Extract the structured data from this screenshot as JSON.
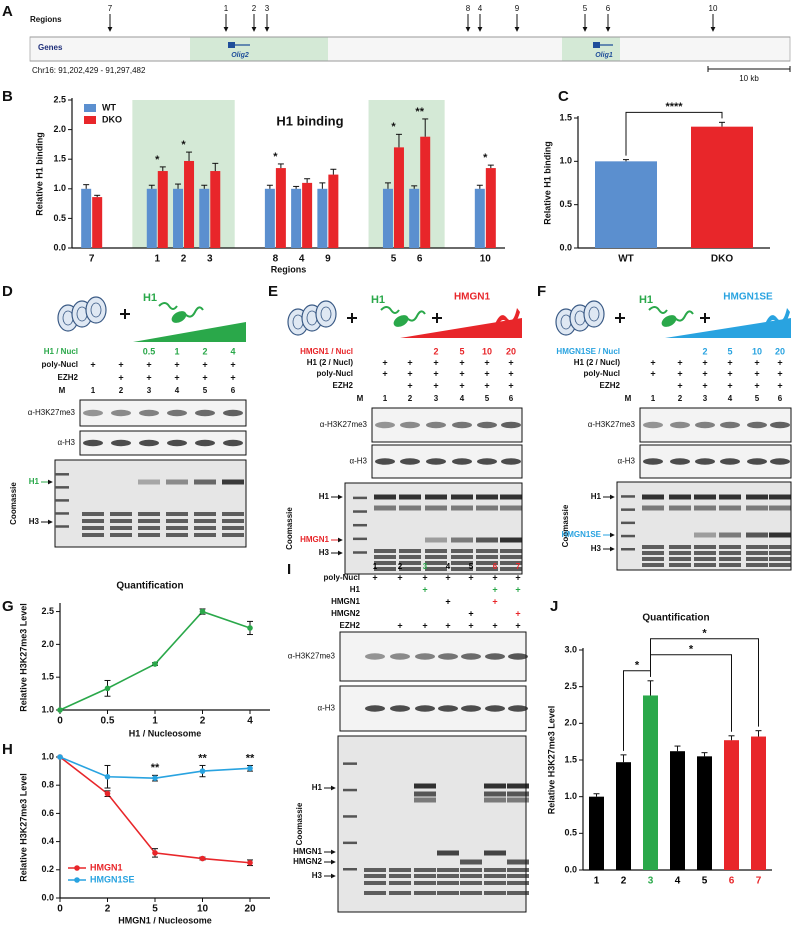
{
  "panel_labels": [
    "A",
    "B",
    "C",
    "D",
    "E",
    "F",
    "G",
    "H",
    "I",
    "J"
  ],
  "panel_a": {
    "regions_label": "Regions",
    "regions": [
      "7",
      "1",
      "2",
      "3",
      "8",
      "4",
      "9",
      "5",
      "6",
      "10"
    ],
    "genes_label": "Genes",
    "genes": [
      "Olig2",
      "Olig1"
    ],
    "coordinates": "Chr16: 91,202,429 - 91,297,482",
    "scale": "10 kb",
    "highlight_color": "#d4e9d6"
  },
  "chart_data": [
    {
      "type": "bar",
      "title": "H1 binding",
      "y_label": "Relative H1 binding",
      "x_label": "Regions",
      "categories": [
        "7",
        "1",
        "2",
        "3",
        "8",
        "4",
        "9",
        "5",
        "6",
        "10"
      ],
      "series": [
        {
          "name": "WT",
          "color": "#5b8fcf",
          "values": [
            1.0,
            1.0,
            1.0,
            1.0,
            1.0,
            1.0,
            1.0,
            1.0,
            1.0,
            1.0
          ],
          "errors": [
            0.07,
            0.06,
            0.08,
            0.06,
            0.06,
            0.04,
            0.1,
            0.1,
            0.05,
            0.06
          ]
        },
        {
          "name": "DKO",
          "color": "#e8262a",
          "values": [
            0.86,
            1.3,
            1.47,
            1.3,
            1.35,
            1.1,
            1.24,
            1.7,
            1.88,
            1.35
          ],
          "errors": [
            0.03,
            0.07,
            0.15,
            0.13,
            0.07,
            0.07,
            0.09,
            0.22,
            0.3,
            0.05
          ]
        }
      ],
      "ylim": [
        0,
        2.5
      ],
      "yticks": [
        {
          "value": 0,
          "label": "0.0"
        },
        0.5,
        {
          "value": 1,
          "label": "1.0"
        },
        1.5,
        {
          "value": 2,
          "label": "2.0"
        },
        2.5
      ],
      "highlights": [
        [
          "1",
          "3"
        ],
        [
          "5",
          "6"
        ]
      ],
      "highlight_color": "#d4e9d6",
      "legend": "upper left",
      "annotations": [
        {
          "x": "1",
          "text": "*"
        },
        {
          "x": "2",
          "text": "*"
        },
        {
          "x": "8",
          "text": "*"
        },
        {
          "x": "5",
          "text": "*"
        },
        {
          "x": "6",
          "text": "**"
        },
        {
          "x": "10",
          "text": "*"
        }
      ]
    },
    {
      "type": "bar",
      "y_label": "Relative H1 binding",
      "categories": [
        "WT",
        "DKO"
      ],
      "values": [
        1.0,
        1.4
      ],
      "errors": [
        0.02,
        0.05
      ],
      "colors": [
        "#5b8fcf",
        "#e8262a"
      ],
      "ylim": [
        0,
        1.5
      ],
      "yticks": [
        {
          "value": 0,
          "label": "0.0"
        },
        0.5,
        {
          "value": 1,
          "label": "1.0"
        },
        1.5
      ],
      "brackets": [
        {
          "from": "WT",
          "to": "DKO",
          "text": "****"
        }
      ]
    },
    {
      "type": "line",
      "title": "Quantification",
      "y_label": "Relative H3K27me3 Level",
      "x_label": "H1 / Nucleosome",
      "categories": [
        "0",
        "0.5",
        "1",
        "2",
        "4"
      ],
      "series": [
        {
          "color": "#2aa84a",
          "values": [
            1.0,
            1.33,
            1.7,
            2.5,
            2.25
          ],
          "errors": [
            0,
            0.12,
            0.02,
            0.04,
            0.1
          ]
        }
      ],
      "ylim": [
        1.0,
        2.6
      ],
      "yticks": [
        {
          "value": 1,
          "label": "1.0"
        },
        1.5,
        {
          "value": 2,
          "label": "2.0"
        },
        2.5
      ]
    },
    {
      "type": "line",
      "y_label": "Relative H3K27me3 Level",
      "x_label": "HMGN1 / Nucleosome",
      "categories": [
        "0",
        "2",
        "5",
        "10",
        "20"
      ],
      "series": [
        {
          "name": "HMGN1",
          "color": "#e8262a",
          "values": [
            1.0,
            0.74,
            0.32,
            0.28,
            0.25
          ],
          "errors": [
            0,
            0.02,
            0.03,
            0.01,
            0.02
          ]
        },
        {
          "name": "HMGN1SE",
          "color": "#29a3e0",
          "values": [
            1.0,
            0.86,
            0.85,
            0.9,
            0.92
          ],
          "errors": [
            0,
            0.08,
            0.02,
            0.04,
            0.02
          ]
        }
      ],
      "ylim": [
        0,
        1.0
      ],
      "yticks": [
        {
          "value": 0,
          "label": "0.0"
        },
        0.2,
        0.4,
        0.6,
        0.8,
        {
          "value": 1,
          "label": "1.0"
        }
      ],
      "legend": "lower left",
      "annotations": [
        {
          "x": "5",
          "text": "**"
        },
        {
          "x": "10",
          "text": "**"
        },
        {
          "x": "20",
          "text": "**"
        }
      ]
    },
    {
      "type": "bar",
      "title": "Quantification",
      "y_label": "Relative H3K27me3 Level",
      "categories": [
        "1",
        "2",
        "3",
        "4",
        "5",
        "6",
        "7"
      ],
      "values": [
        1.0,
        1.47,
        2.38,
        1.62,
        1.55,
        1.77,
        1.82
      ],
      "errors": [
        0.04,
        0.1,
        0.2,
        0.07,
        0.05,
        0.06,
        0.08
      ],
      "colors": [
        "#000000",
        "#000000",
        "#2aa84a",
        "#000000",
        "#000000",
        "#e8262a",
        "#e8262a"
      ],
      "category_colors": [
        "#000000",
        "#000000",
        "#2aa84a",
        "#000000",
        "#000000",
        "#e8262a",
        "#e8262a"
      ],
      "ylim": [
        0,
        3.0
      ],
      "yticks": [
        {
          "value": 0,
          "label": "0.0"
        },
        0.5,
        {
          "value": 1,
          "label": "1.0"
        },
        1.5,
        {
          "value": 2,
          "label": "2.0"
        },
        2.5,
        {
          "value": 3,
          "label": "3.0"
        }
      ],
      "brackets": [
        {
          "from": "2",
          "to": "3",
          "text": "*"
        },
        {
          "from": "3",
          "to": "6",
          "text": "*"
        },
        {
          "from": "3",
          "to": "7",
          "text": "*"
        }
      ]
    }
  ],
  "gels": [
    {
      "color": "#2aa84a",
      "proteins": [
        "H1"
      ],
      "ratio_label": "H1 / Nucl",
      "ratios": [
        "0.5",
        "1",
        "2",
        "4"
      ],
      "rows": [
        {
          "label": "poly-Nucl",
          "marks": [
            "+",
            "+",
            "+",
            "+",
            "+",
            "+"
          ]
        },
        {
          "label": "EZH2",
          "marks": [
            null,
            "+",
            "+",
            "+",
            "+",
            "+"
          ]
        }
      ],
      "lanes": [
        "M",
        "1",
        "2",
        "3",
        "4",
        "5",
        "6"
      ],
      "blots": [
        "α-H3K27me3",
        "α-H3"
      ],
      "stain": "Coomassie",
      "bands": [
        "H1",
        "H3"
      ],
      "band_colors": [
        "#2aa84a",
        null
      ]
    },
    {
      "color": "#e8262a",
      "proteins": [
        "H1",
        "HMGN1"
      ],
      "ratio_label": "HMGN1 / Nucl",
      "ratios": [
        "2",
        "5",
        "10",
        "20"
      ],
      "rows": [
        {
          "label": "H1 (2 / Nucl)",
          "marks": [
            "+",
            "+",
            "+",
            "+",
            "+",
            "+"
          ]
        },
        {
          "label": "poly-Nucl",
          "marks": [
            "+",
            "+",
            "+",
            "+",
            "+",
            "+"
          ]
        },
        {
          "label": "EZH2",
          "marks": [
            null,
            "+",
            "+",
            "+",
            "+",
            "+"
          ]
        }
      ],
      "lanes": [
        "M",
        "1",
        "2",
        "3",
        "4",
        "5",
        "6"
      ],
      "blots": [
        "α-H3K27me3",
        "α-H3"
      ],
      "stain": "Coomassie",
      "bands": [
        "H1",
        "HMGN1",
        "H3"
      ],
      "band_colors": [
        null,
        "#e8262a",
        null
      ]
    },
    {
      "color": "#29a3e0",
      "proteins": [
        "H1",
        "HMGN1SE"
      ],
      "ratio_label": "HMGN1SE / Nucl",
      "ratios": [
        "2",
        "5",
        "10",
        "20"
      ],
      "rows": [
        {
          "label": "H1 (2 / Nucl)",
          "marks": [
            "+",
            "+",
            "+",
            "+",
            "+",
            "+"
          ]
        },
        {
          "label": "poly-Nucl",
          "marks": [
            "+",
            "+",
            "+",
            "+",
            "+",
            "+"
          ]
        },
        {
          "label": "EZH2",
          "marks": [
            null,
            "+",
            "+",
            "+",
            "+",
            "+"
          ]
        }
      ],
      "lanes": [
        "M",
        "1",
        "2",
        "3",
        "4",
        "5",
        "6"
      ],
      "blots": [
        "α-H3K27me3",
        "α-H3"
      ],
      "stain": "Coomassie",
      "bands": [
        "H1",
        "HMGN1SE",
        "H3"
      ],
      "band_colors": [
        null,
        "#29a3e0",
        null
      ]
    },
    {
      "lanes": [
        "1",
        "2",
        "3",
        "4",
        "5",
        "6",
        "7"
      ],
      "lane_colors": [
        "#000000",
        "#000000",
        "#2aa84a",
        "#000000",
        "#000000",
        "#e8262a",
        "#e8262a"
      ],
      "rows": [
        {
          "label": "poly-Nucl",
          "marks": [
            "+",
            "+",
            "+",
            "+",
            "+",
            "+",
            "+"
          ]
        },
        {
          "label": "H1",
          "marks": [
            null,
            null,
            "+",
            null,
            null,
            "+",
            "+"
          ],
          "mark_color": "#2aa84a"
        },
        {
          "label": "HMGN1",
          "marks": [
            null,
            null,
            null,
            "+",
            null,
            "+",
            null
          ],
          "mark_colors": [
            "#000000",
            "#000000",
            "#000000",
            "#000000",
            "#000000",
            "#e8262a",
            "#000000"
          ]
        },
        {
          "label": "HMGN2",
          "marks": [
            null,
            null,
            null,
            null,
            "+",
            null,
            "+"
          ],
          "mark_colors": [
            "#000000",
            "#000000",
            "#000000",
            "#000000",
            "#000000",
            "#000000",
            "#e8262a"
          ]
        },
        {
          "label": "EZH2",
          "marks": [
            null,
            "+",
            "+",
            "+",
            "+",
            "+",
            "+"
          ]
        }
      ],
      "blots": [
        "α-H3K27me3",
        "α-H3"
      ],
      "stain": "Coomassie",
      "bands": [
        "H1",
        "HMGN1",
        "HMGN2",
        "H3"
      ]
    }
  ]
}
